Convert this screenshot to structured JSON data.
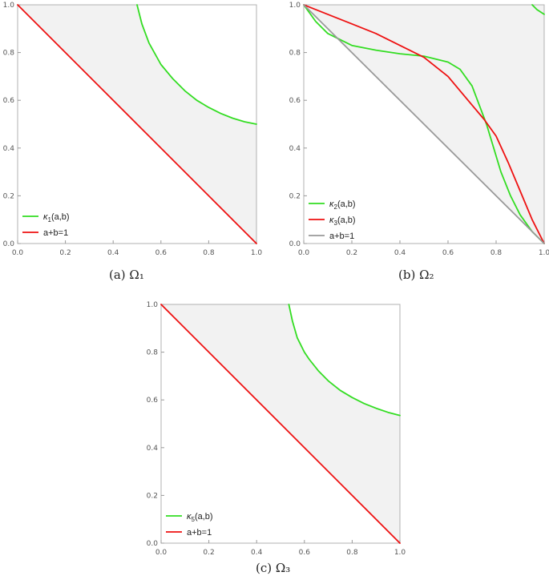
{
  "chart_data": [
    {
      "id": "a",
      "type": "line",
      "caption": "(a)  Ω₁",
      "xlim": [
        0,
        1
      ],
      "ylim": [
        0,
        1
      ],
      "xticks": [
        "0.0",
        "0.2",
        "0.4",
        "0.6",
        "0.8",
        "1.0"
      ],
      "yticks": [
        "0.0",
        "0.2",
        "0.4",
        "0.6",
        "0.8",
        "1.0"
      ],
      "grid": false,
      "legend_position": "bottom-left",
      "shaded_region": {
        "color": "#f2f2f2",
        "points": [
          [
            0,
            1
          ],
          [
            0.5,
            1
          ],
          [
            0.55,
            0.84
          ],
          [
            0.6,
            0.75
          ],
          [
            0.7,
            0.64
          ],
          [
            0.8,
            0.57
          ],
          [
            0.9,
            0.525
          ],
          [
            1,
            0.5
          ],
          [
            1,
            0
          ],
          [
            0,
            1
          ]
        ]
      },
      "series": [
        {
          "name": "κ₁(a,b)",
          "name_main": "κ",
          "name_sub": "1",
          "name_rest": "(a,b)",
          "color": "#33dd22",
          "points": [
            [
              0.5,
              1
            ],
            [
              0.52,
              0.92
            ],
            [
              0.55,
              0.84
            ],
            [
              0.6,
              0.75
            ],
            [
              0.65,
              0.69
            ],
            [
              0.7,
              0.64
            ],
            [
              0.75,
              0.6
            ],
            [
              0.8,
              0.57
            ],
            [
              0.85,
              0.545
            ],
            [
              0.9,
              0.525
            ],
            [
              0.95,
              0.51
            ],
            [
              1,
              0.5
            ]
          ]
        },
        {
          "name": "a+b=1",
          "color": "#ee1111",
          "points": [
            [
              0,
              1
            ],
            [
              1,
              0
            ]
          ]
        }
      ]
    },
    {
      "id": "b",
      "type": "line",
      "caption": "(b)  Ω₂",
      "xlim": [
        0,
        1
      ],
      "ylim": [
        0,
        1
      ],
      "xticks": [
        "0.0",
        "0.2",
        "0.4",
        "0.6",
        "0.8",
        "1.0"
      ],
      "yticks": [
        "0.0",
        "0.2",
        "0.4",
        "0.6",
        "0.8",
        "1.0"
      ],
      "grid": false,
      "legend_position": "bottom-left",
      "shaded_region": {
        "color": "#f2f2f2",
        "points": [
          [
            0,
            1
          ],
          [
            1,
            1
          ],
          [
            1,
            0
          ],
          [
            0,
            1
          ]
        ]
      },
      "series": [
        {
          "name": "κ₂(a,b)",
          "name_main": "κ",
          "name_sub": "2",
          "name_rest": "(a,b)",
          "color": "#33dd22",
          "points": [
            [
              0,
              1
            ],
            [
              0.05,
              0.93
            ],
            [
              0.1,
              0.88
            ],
            [
              0.2,
              0.83
            ],
            [
              0.3,
              0.81
            ],
            [
              0.4,
              0.795
            ],
            [
              0.5,
              0.785
            ],
            [
              0.6,
              0.76
            ],
            [
              0.65,
              0.73
            ],
            [
              0.7,
              0.66
            ],
            [
              0.73,
              0.58
            ],
            [
              0.76,
              0.5
            ],
            [
              0.79,
              0.4
            ],
            [
              0.82,
              0.3
            ],
            [
              0.86,
              0.2
            ],
            [
              0.9,
              0.12
            ],
            [
              0.95,
              0.05
            ],
            [
              1,
              0
            ]
          ]
        },
        {
          "name": "κ₃(a,b)",
          "name_main": "κ",
          "name_sub": "3",
          "name_rest": "(a,b)",
          "color": "#ee1111",
          "points": [
            [
              0,
              1
            ],
            [
              0.1,
              0.96
            ],
            [
              0.2,
              0.92
            ],
            [
              0.3,
              0.88
            ],
            [
              0.4,
              0.83
            ],
            [
              0.5,
              0.78
            ],
            [
              0.6,
              0.7
            ],
            [
              0.7,
              0.58
            ],
            [
              0.75,
              0.52
            ],
            [
              0.8,
              0.45
            ],
            [
              0.85,
              0.34
            ],
            [
              0.9,
              0.22
            ],
            [
              0.95,
              0.1
            ],
            [
              1,
              0
            ]
          ]
        },
        {
          "name": "a+b=1",
          "color": "#999999",
          "points": [
            [
              0,
              1
            ],
            [
              1,
              0
            ]
          ]
        },
        {
          "color": "#33dd22",
          "points": [
            [
              0.95,
              1
            ],
            [
              0.97,
              0.98
            ],
            [
              1,
              0.96
            ]
          ]
        }
      ]
    },
    {
      "id": "c",
      "type": "line",
      "caption": "(c)  Ω₃",
      "xlim": [
        0,
        1
      ],
      "ylim": [
        0,
        1
      ],
      "xticks": [
        "0.0",
        "0.2",
        "0.4",
        "0.6",
        "0.8",
        "1.0"
      ],
      "yticks": [
        "0.0",
        "0.2",
        "0.4",
        "0.6",
        "0.8",
        "1.0"
      ],
      "grid": false,
      "legend_position": "bottom-left",
      "shaded_region": {
        "color": "#f2f2f2",
        "points": [
          [
            0,
            1
          ],
          [
            0.535,
            1
          ],
          [
            0.57,
            0.86
          ],
          [
            0.62,
            0.77
          ],
          [
            0.7,
            0.68
          ],
          [
            0.8,
            0.61
          ],
          [
            0.9,
            0.565
          ],
          [
            1,
            0.535
          ],
          [
            1,
            0
          ],
          [
            0,
            1
          ]
        ]
      },
      "series": [
        {
          "name": "κ₅(a,b)",
          "name_main": "κ",
          "name_sub": "5",
          "name_rest": "(a,b)",
          "color": "#33dd22",
          "points": [
            [
              0.535,
              1
            ],
            [
              0.55,
              0.93
            ],
            [
              0.57,
              0.86
            ],
            [
              0.6,
              0.8
            ],
            [
              0.62,
              0.77
            ],
            [
              0.66,
              0.72
            ],
            [
              0.7,
              0.68
            ],
            [
              0.75,
              0.64
            ],
            [
              0.8,
              0.61
            ],
            [
              0.85,
              0.585
            ],
            [
              0.9,
              0.565
            ],
            [
              0.95,
              0.548
            ],
            [
              1,
              0.535
            ]
          ]
        },
        {
          "name": "a+b=1",
          "color": "#ee1111",
          "points": [
            [
              0,
              1
            ],
            [
              1,
              0
            ]
          ]
        }
      ]
    }
  ]
}
